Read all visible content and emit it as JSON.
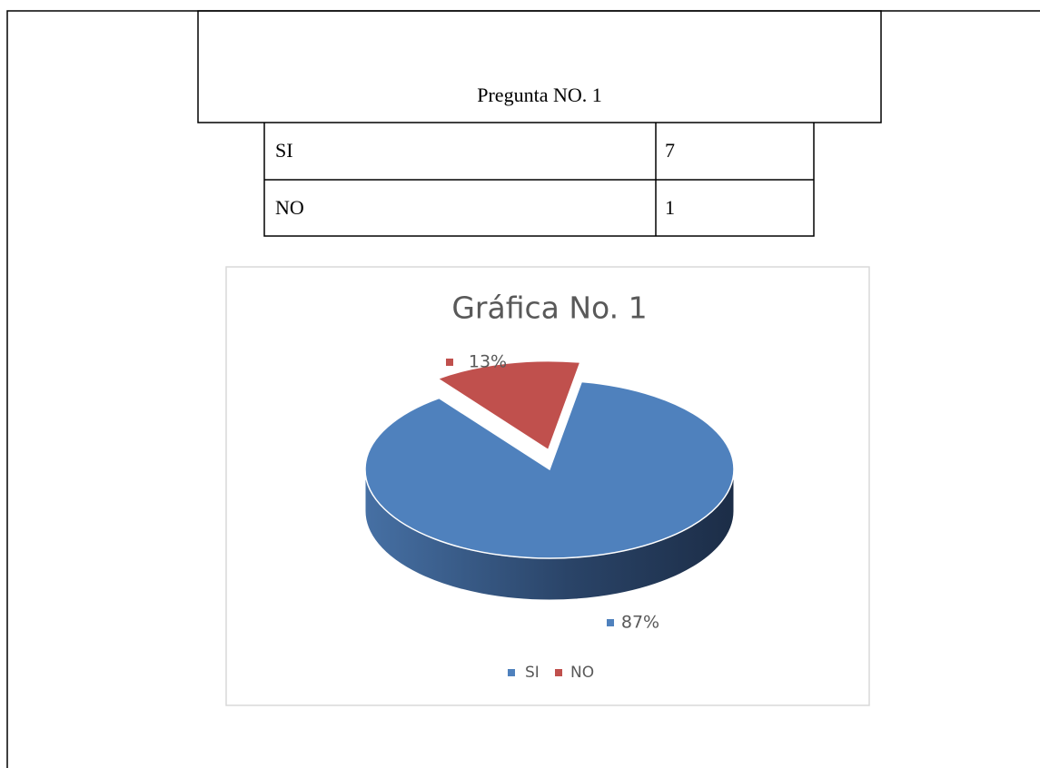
{
  "question": {
    "title": "Pregunta NO. 1",
    "rows": [
      [
        "SI",
        7
      ],
      [
        "NO",
        1
      ]
    ]
  },
  "chart_data": {
    "type": "pie",
    "title": "Gráfica No. 1",
    "categories": [
      "SI",
      "NO"
    ],
    "values": [
      87,
      13
    ],
    "value_labels": [
      "87%",
      "13%"
    ],
    "colors": [
      "#4f81bd",
      "#c0504d"
    ],
    "legend": "bottom"
  }
}
